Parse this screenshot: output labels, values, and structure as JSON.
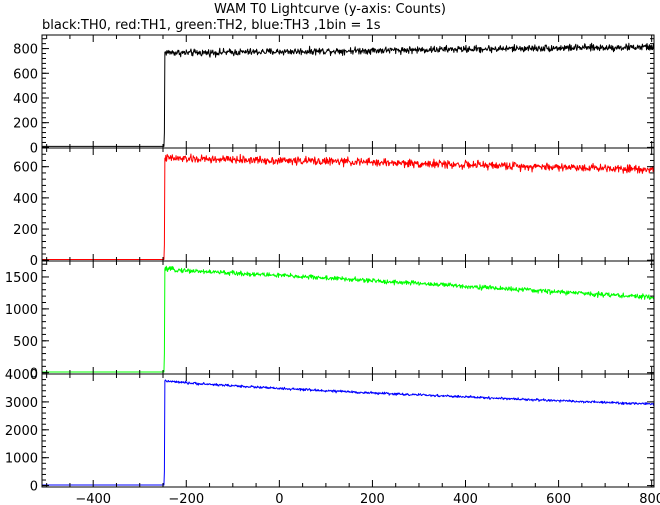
{
  "chart_data": {
    "type": "line",
    "title": "WAM T0 Lightcurve (y-axis: Counts)",
    "subtitle": "black:TH0, red:TH1, green:TH2, blue:TH3 ,1bin = 1s",
    "xlim": [
      -510,
      805
    ],
    "x_ticks": [
      -400,
      -200,
      0,
      200,
      400,
      600,
      800
    ],
    "x_tick_labels": [
      "−400",
      "−200",
      "0",
      "200",
      "400",
      "600",
      "800"
    ],
    "grid": false,
    "panels": [
      {
        "series_label": "TH0",
        "color": "#000000",
        "ylim": [
          -5,
          910
        ],
        "y_ticks": [
          0,
          200,
          400,
          600,
          800
        ],
        "y_tick_labels": [
          "0",
          "200",
          "400",
          "600",
          "800"
        ],
        "points": [
          {
            "x": -510,
            "y": 8
          },
          {
            "x": -248,
            "y": 8
          },
          {
            "x": -247,
            "y": 120
          },
          {
            "x": -246,
            "y": 770
          },
          {
            "x": -200,
            "y": 765
          },
          {
            "x": -100,
            "y": 770
          },
          {
            "x": 0,
            "y": 775
          },
          {
            "x": 100,
            "y": 780
          },
          {
            "x": 200,
            "y": 785
          },
          {
            "x": 300,
            "y": 790
          },
          {
            "x": 400,
            "y": 795
          },
          {
            "x": 500,
            "y": 800
          },
          {
            "x": 600,
            "y": 805
          },
          {
            "x": 700,
            "y": 808
          },
          {
            "x": 800,
            "y": 812
          }
        ],
        "noise_amplitude": 42
      },
      {
        "series_label": "TH1",
        "color": "#ff0000",
        "ylim": [
          -5,
          720
        ],
        "y_ticks": [
          0,
          200,
          400,
          600
        ],
        "y_tick_labels": [
          "0",
          "200",
          "400",
          "600"
        ],
        "points": [
          {
            "x": -510,
            "y": 5
          },
          {
            "x": -248,
            "y": 5
          },
          {
            "x": -247,
            "y": 100
          },
          {
            "x": -246,
            "y": 655
          },
          {
            "x": -200,
            "y": 650
          },
          {
            "x": -100,
            "y": 645
          },
          {
            "x": 0,
            "y": 640
          },
          {
            "x": 100,
            "y": 635
          },
          {
            "x": 200,
            "y": 628
          },
          {
            "x": 300,
            "y": 620
          },
          {
            "x": 400,
            "y": 612
          },
          {
            "x": 500,
            "y": 605
          },
          {
            "x": 600,
            "y": 598
          },
          {
            "x": 700,
            "y": 592
          },
          {
            "x": 800,
            "y": 585
          }
        ],
        "noise_amplitude": 38
      },
      {
        "series_label": "TH2",
        "color": "#00ff00",
        "ylim": [
          -20,
          1750
        ],
        "y_ticks": [
          0,
          500,
          1000,
          1500
        ],
        "y_tick_labels": [
          "0",
          "500",
          "1000",
          "1500"
        ],
        "points": [
          {
            "x": -510,
            "y": 12
          },
          {
            "x": -248,
            "y": 12
          },
          {
            "x": -247,
            "y": 300
          },
          {
            "x": -246,
            "y": 1625
          },
          {
            "x": -200,
            "y": 1600
          },
          {
            "x": -100,
            "y": 1560
          },
          {
            "x": 0,
            "y": 1525
          },
          {
            "x": 100,
            "y": 1485
          },
          {
            "x": 200,
            "y": 1440
          },
          {
            "x": 300,
            "y": 1400
          },
          {
            "x": 400,
            "y": 1355
          },
          {
            "x": 500,
            "y": 1310
          },
          {
            "x": 600,
            "y": 1265
          },
          {
            "x": 700,
            "y": 1225
          },
          {
            "x": 800,
            "y": 1180
          }
        ],
        "noise_amplitude": 55
      },
      {
        "series_label": "TH3",
        "color": "#0000ff",
        "ylim": [
          -50,
          4000
        ],
        "y_ticks": [
          0,
          1000,
          2000,
          3000,
          4000
        ],
        "y_tick_labels": [
          "0",
          "1000",
          "2000",
          "3000",
          "4000"
        ],
        "points": [
          {
            "x": -510,
            "y": 20
          },
          {
            "x": -248,
            "y": 20
          },
          {
            "x": -247,
            "y": 500
          },
          {
            "x": -246,
            "y": 3750
          },
          {
            "x": -200,
            "y": 3680
          },
          {
            "x": -100,
            "y": 3580
          },
          {
            "x": 0,
            "y": 3480
          },
          {
            "x": 100,
            "y": 3400
          },
          {
            "x": 200,
            "y": 3320
          },
          {
            "x": 300,
            "y": 3250
          },
          {
            "x": 400,
            "y": 3180
          },
          {
            "x": 500,
            "y": 3110
          },
          {
            "x": 600,
            "y": 3040
          },
          {
            "x": 700,
            "y": 2980
          },
          {
            "x": 800,
            "y": 2920
          }
        ],
        "noise_amplitude": 65
      }
    ]
  }
}
